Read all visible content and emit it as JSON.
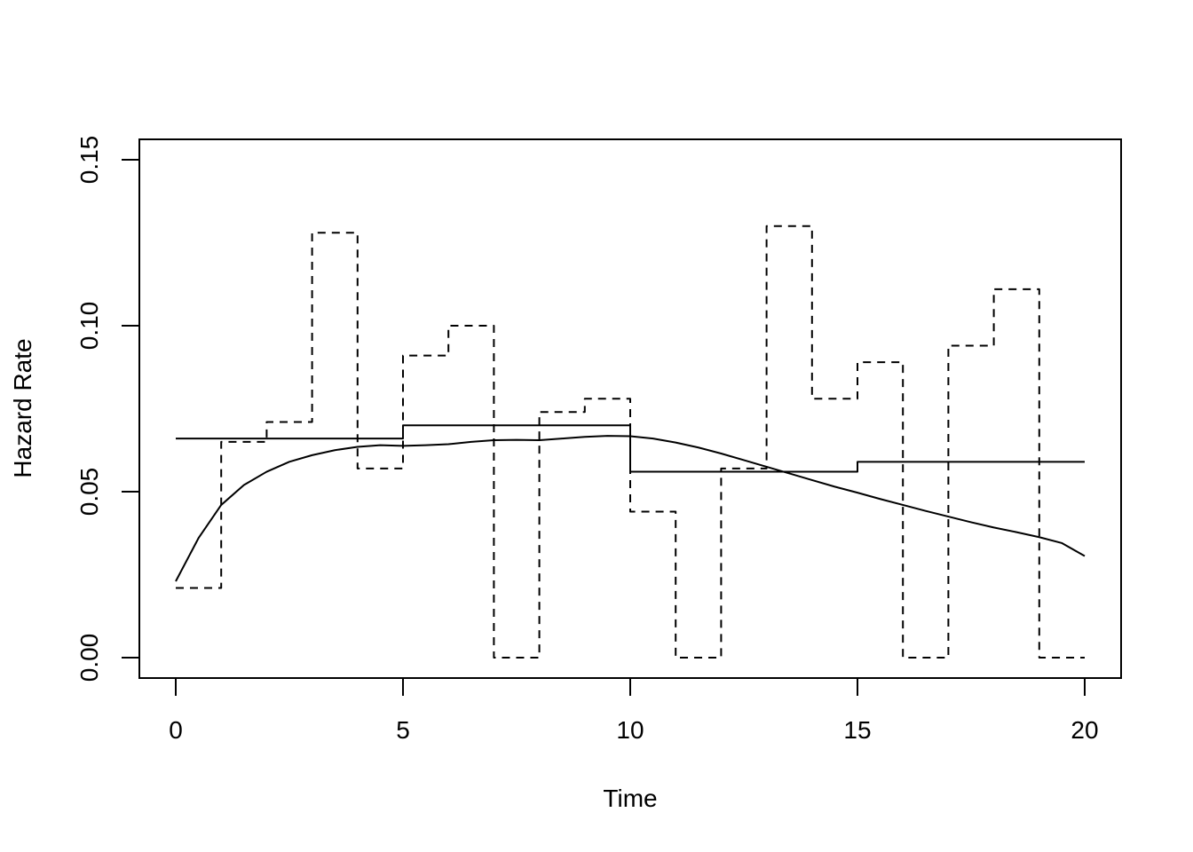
{
  "chart_data": {
    "type": "line",
    "title": "",
    "xlabel": "Time",
    "ylabel": "Hazard Rate",
    "xlim": [
      0,
      20
    ],
    "ylim": [
      0,
      0.15
    ],
    "x_ticks": [
      0,
      5,
      10,
      15,
      20
    ],
    "x_tick_labels": [
      "0",
      "5",
      "10",
      "15",
      "20"
    ],
    "y_ticks": [
      0,
      0.05,
      0.1,
      0.15
    ],
    "y_tick_labels": [
      "0.00",
      "0.05",
      "0.10",
      "0.15"
    ],
    "grid": false,
    "legend": "none",
    "series": [
      {
        "style": "dashed",
        "kind": "step",
        "breaks": [
          0,
          1,
          2,
          3,
          4,
          5,
          6,
          7,
          8,
          9,
          10,
          11,
          12,
          13,
          14,
          15,
          16,
          17,
          18,
          19,
          20
        ],
        "values": [
          0.021,
          0.065,
          0.071,
          0.128,
          0.057,
          0.091,
          0.1,
          0.0,
          0.074,
          0.078,
          0.044,
          0.0,
          0.057,
          0.13,
          0.078,
          0.089,
          0.0,
          0.094,
          0.111,
          0.0
        ]
      },
      {
        "style": "solid",
        "kind": "step",
        "breaks": [
          0,
          5,
          10,
          15,
          20
        ],
        "values": [
          0.066,
          0.07,
          0.056,
          0.059
        ]
      },
      {
        "style": "solid",
        "kind": "smooth",
        "x": [
          0,
          0.5,
          1,
          1.5,
          2,
          2.5,
          3,
          3.5,
          4,
          4.5,
          5,
          5.5,
          6,
          6.5,
          7,
          7.5,
          8,
          8.5,
          9,
          9.5,
          10,
          10.5,
          11,
          11.5,
          12,
          12.5,
          13,
          13.5,
          14,
          14.5,
          15,
          15.5,
          16,
          16.5,
          17,
          17.5,
          18,
          18.5,
          19,
          19.5,
          20
        ],
        "y": [
          0.023,
          0.036,
          0.046,
          0.052,
          0.056,
          0.059,
          0.061,
          0.0625,
          0.0635,
          0.064,
          0.0638,
          0.064,
          0.0643,
          0.065,
          0.0655,
          0.0656,
          0.0655,
          0.066,
          0.0665,
          0.0668,
          0.0667,
          0.066,
          0.0648,
          0.0633,
          0.0615,
          0.0595,
          0.0575,
          0.0555,
          0.0535,
          0.0515,
          0.0497,
          0.0478,
          0.046,
          0.0442,
          0.0425,
          0.0408,
          0.0392,
          0.0378,
          0.0363,
          0.0345,
          0.0306
        ]
      }
    ]
  }
}
